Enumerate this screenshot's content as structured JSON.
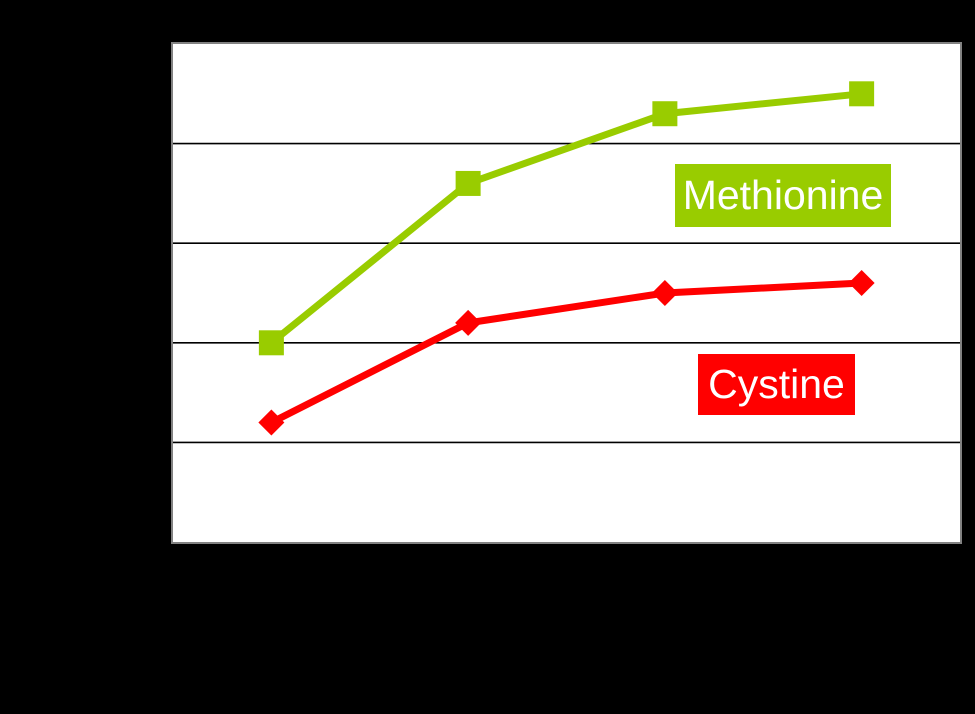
{
  "page": {
    "background_color": "#000000"
  },
  "chart_data": {
    "type": "line",
    "title": "",
    "x_positions": [
      1,
      2,
      3,
      4
    ],
    "x_tick_labels": [],
    "y_tick_labels": [],
    "tick_labels_visible": false,
    "ylim": [
      0,
      5
    ],
    "gridline_step": 1,
    "grid": "horizontal-only",
    "gridline_color": "#000000",
    "plot_background": "#FFFFFF",
    "plot_border_color": "#828282",
    "legend_position": "inline-label-boxes-inside-plot",
    "series": [
      {
        "name": "Methionine",
        "color": "#99CC00",
        "marker": "square",
        "marker_size": 25,
        "line_width": 7,
        "values": [
          2.0,
          3.6,
          4.3,
          4.5
        ],
        "label_text_color": "#FFFFFF"
      },
      {
        "name": "Cystine",
        "color": "#FF0000",
        "marker": "diamond",
        "marker_size": 26,
        "line_width": 7,
        "values": [
          1.2,
          2.2,
          2.5,
          2.6
        ],
        "label_text_color": "#FFFFFF"
      }
    ]
  }
}
